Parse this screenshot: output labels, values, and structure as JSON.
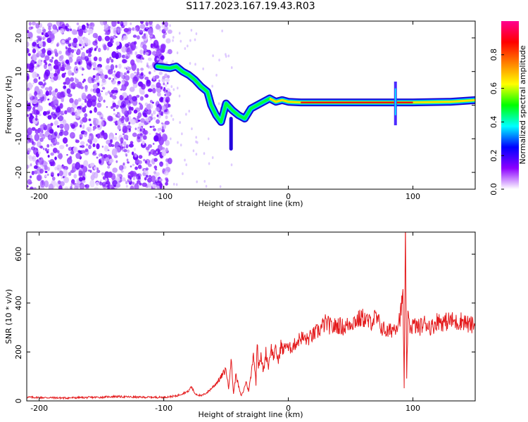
{
  "title": "S117.2023.167.19.43.R03",
  "chart_data": [
    {
      "type": "heatmap",
      "xlabel": "Height of straight line (km)",
      "ylabel": "Frequency (Hz)",
      "xlim": [
        -210,
        150
      ],
      "ylim": [
        -25,
        25
      ],
      "xticks": [
        "-200",
        "-100",
        "0",
        "100"
      ],
      "xtick_values": [
        -200,
        -100,
        0,
        100
      ],
      "yticks": [
        "20",
        "10",
        "0",
        "-10",
        "-20"
      ],
      "ytick_values": [
        20,
        10,
        0,
        -10,
        -20
      ],
      "noise_region_x": [
        -210,
        -95
      ],
      "signal_track": [
        {
          "x": -105,
          "y": 11.5
        },
        {
          "x": -95,
          "y": 11
        },
        {
          "x": -90,
          "y": 11.5
        },
        {
          "x": -85,
          "y": 10
        },
        {
          "x": -80,
          "y": 9
        },
        {
          "x": -75,
          "y": 7.5
        },
        {
          "x": -70,
          "y": 5.5
        },
        {
          "x": -65,
          "y": 4
        },
        {
          "x": -62,
          "y": 0
        },
        {
          "x": -58,
          "y": -3
        },
        {
          "x": -54,
          "y": -5
        },
        {
          "x": -50,
          "y": 0.5
        },
        {
          "x": -45,
          "y": -1.5
        },
        {
          "x": -40,
          "y": -3
        },
        {
          "x": -35,
          "y": -4
        },
        {
          "x": -30,
          "y": -1
        },
        {
          "x": -25,
          "y": 0
        },
        {
          "x": -20,
          "y": 1
        },
        {
          "x": -15,
          "y": 2
        },
        {
          "x": -10,
          "y": 1
        },
        {
          "x": -5,
          "y": 1.5
        },
        {
          "x": 0,
          "y": 1
        },
        {
          "x": 10,
          "y": 0.8
        },
        {
          "x": 50,
          "y": 0.8
        },
        {
          "x": 85,
          "y": 0.8
        },
        {
          "x": 100,
          "y": 0.8
        },
        {
          "x": 130,
          "y": 1
        },
        {
          "x": 150,
          "y": 1.5
        }
      ],
      "colorbar": {
        "label": "Normalized spectral amplitude",
        "ticks": [
          "0.0",
          "0.2",
          "0.4",
          "0.6",
          "0.8"
        ],
        "tick_values": [
          0,
          0.2,
          0.4,
          0.6,
          0.8
        ],
        "range": [
          0,
          1
        ],
        "colors": [
          "#ffffff",
          "#8c00ff",
          "#0000ff",
          "#00ffff",
          "#00ff00",
          "#ffff00",
          "#ff8000",
          "#ff0000",
          "#ff0090"
        ]
      }
    },
    {
      "type": "line",
      "xlabel": "Height of straight line (km)",
      "ylabel": "SNR (10 * v/v)",
      "xlim": [
        -210,
        150
      ],
      "ylim": [
        0,
        690
      ],
      "xticks": [
        "-200",
        "-100",
        "0",
        "100"
      ],
      "xtick_values": [
        -200,
        -100,
        0,
        100
      ],
      "yticks": [
        "0",
        "200",
        "400",
        "600"
      ],
      "ytick_values": [
        0,
        200,
        400,
        600
      ],
      "color": "#e41a1c",
      "series": [
        {
          "x": [
            -210,
            -180,
            -150,
            -140,
            -120,
            -100,
            -90,
            -85,
            -80,
            -78,
            -75,
            -70,
            -65,
            -60,
            -55,
            -50,
            -48,
            -46,
            -44,
            -42,
            -40,
            -38,
            -36,
            -34,
            -32,
            -30,
            -28,
            -26,
            -25,
            -24,
            -22,
            -20,
            -18,
            -16,
            -14,
            -12,
            -10,
            -8,
            -6,
            -4,
            -2,
            0,
            5,
            10,
            15,
            20,
            25,
            30,
            35,
            40,
            45,
            50,
            55,
            60,
            65,
            70,
            75,
            80,
            85,
            88,
            90,
            92,
            93,
            94,
            95,
            96,
            98,
            100,
            105,
            110,
            115,
            120,
            125,
            130,
            135,
            140,
            145,
            150
          ],
          "y": [
            15,
            12,
            15,
            18,
            15,
            15,
            20,
            30,
            40,
            60,
            30,
            20,
            35,
            60,
            90,
            130,
            50,
            170,
            30,
            110,
            60,
            20,
            40,
            80,
            40,
            100,
            200,
            70,
            260,
            150,
            180,
            120,
            200,
            140,
            220,
            180,
            210,
            160,
            230,
            200,
            240,
            210,
            230,
            260,
            250,
            270,
            290,
            320,
            300,
            310,
            300,
            320,
            330,
            340,
            320,
            340,
            300,
            280,
            300,
            320,
            350,
            430,
            50,
            660,
            100,
            330,
            300,
            310,
            300,
            320,
            300,
            330,
            320,
            330,
            320,
            330,
            310,
            310
          ]
        }
      ]
    }
  ]
}
